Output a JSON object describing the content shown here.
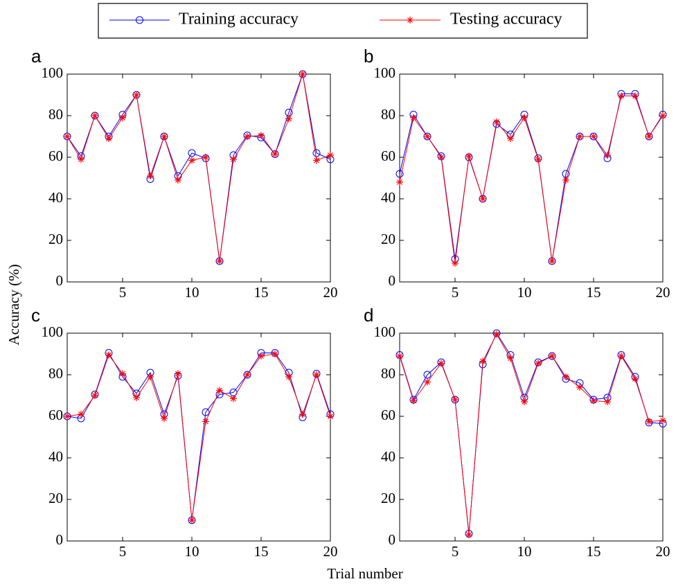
{
  "legend": {
    "series_names_from": "chart_data.0.series"
  },
  "ylabel": "Accuracy (%)",
  "xlabel": "Trial number",
  "chart_data": [
    {
      "type": "line",
      "title": "a",
      "x": [
        1,
        2,
        3,
        4,
        5,
        6,
        7,
        8,
        9,
        10,
        11,
        12,
        13,
        14,
        15,
        16,
        17,
        18,
        19,
        20
      ],
      "xlim": [
        1,
        20
      ],
      "xticks": [
        5,
        10,
        15,
        20
      ],
      "ylim": [
        0,
        100
      ],
      "yticks": [
        0,
        20,
        40,
        60,
        80,
        100
      ],
      "series": [
        {
          "name": "Training accuracy",
          "color": "#0000ff",
          "marker": "circle",
          "values": [
            70,
            60.5,
            80,
            70,
            80.5,
            90,
            49.5,
            70,
            51,
            62,
            59.5,
            10,
            61,
            70.5,
            69.5,
            61.5,
            81.5,
            100,
            62,
            59
          ]
        },
        {
          "name": "Testing accuracy",
          "color": "#ff0000",
          "marker": "asterisk",
          "values": [
            70,
            59,
            80,
            69,
            79,
            90,
            51,
            70,
            49,
            58.5,
            60,
            10,
            59,
            70,
            70.5,
            61.5,
            78.5,
            100,
            58.5,
            61
          ]
        }
      ]
    },
    {
      "type": "line",
      "title": "b",
      "x": [
        1,
        2,
        3,
        4,
        5,
        6,
        7,
        8,
        9,
        10,
        11,
        12,
        13,
        14,
        15,
        16,
        17,
        18,
        19,
        20
      ],
      "xlim": [
        1,
        20
      ],
      "xticks": [
        5,
        10,
        15,
        20
      ],
      "ylim": [
        0,
        100
      ],
      "yticks": [
        0,
        20,
        40,
        60,
        80,
        100
      ],
      "series": [
        {
          "name": "Training accuracy",
          "color": "#0000ff",
          "marker": "circle",
          "values": [
            52,
            80.5,
            70,
            60.5,
            11,
            60,
            40,
            76,
            71,
            80.5,
            59.5,
            10,
            52,
            70,
            70,
            59.5,
            90.5,
            90.5,
            70,
            80.5
          ]
        },
        {
          "name": "Testing accuracy",
          "color": "#ff0000",
          "marker": "asterisk",
          "values": [
            48,
            79,
            70,
            60,
            9,
            60.5,
            40,
            77,
            69,
            79,
            59,
            10,
            49,
            70,
            70,
            61,
            89.5,
            89.5,
            70,
            80
          ]
        }
      ]
    },
    {
      "type": "line",
      "title": "c",
      "x": [
        1,
        2,
        3,
        4,
        5,
        6,
        7,
        8,
        9,
        10,
        11,
        12,
        13,
        14,
        15,
        16,
        17,
        18,
        19,
        20
      ],
      "xlim": [
        1,
        20
      ],
      "xticks": [
        5,
        10,
        15,
        20
      ],
      "ylim": [
        0,
        100
      ],
      "yticks": [
        0,
        20,
        40,
        60,
        80,
        100
      ],
      "series": [
        {
          "name": "Training accuracy",
          "color": "#0000ff",
          "marker": "circle",
          "values": [
            60,
            59,
            70.5,
            90.5,
            79,
            71,
            81,
            61,
            79.5,
            10,
            62,
            70.5,
            71.5,
            80,
            90.5,
            90.5,
            81,
            59.5,
            80.5,
            61
          ]
        },
        {
          "name": "Testing accuracy",
          "color": "#ff0000",
          "marker": "asterisk",
          "values": [
            60,
            61,
            70,
            89.5,
            80.5,
            69,
            79,
            59,
            80.5,
            10,
            57.5,
            72.5,
            68.5,
            80,
            89,
            90,
            79,
            61,
            80,
            60
          ]
        }
      ]
    },
    {
      "type": "line",
      "title": "d",
      "x": [
        1,
        2,
        3,
        4,
        5,
        6,
        7,
        8,
        9,
        10,
        11,
        12,
        13,
        14,
        15,
        16,
        17,
        18,
        19,
        20
      ],
      "xlim": [
        1,
        20
      ],
      "xticks": [
        5,
        10,
        15,
        20
      ],
      "ylim": [
        0,
        100
      ],
      "yticks": [
        0,
        20,
        40,
        60,
        80,
        100
      ],
      "series": [
        {
          "name": "Training accuracy",
          "color": "#0000ff",
          "marker": "circle",
          "values": [
            89.5,
            68,
            80,
            86,
            68,
            3.5,
            85,
            100,
            89.5,
            69,
            86,
            89,
            78,
            76,
            68,
            69,
            89.5,
            79,
            57,
            56.5
          ]
        },
        {
          "name": "Testing accuracy",
          "color": "#ff0000",
          "marker": "asterisk",
          "values": [
            89,
            67.5,
            76.5,
            85.5,
            68,
            3,
            86.5,
            99.5,
            88,
            67,
            85.5,
            89,
            79,
            74,
            67.5,
            67,
            89,
            78,
            57.5,
            58
          ]
        }
      ]
    }
  ]
}
